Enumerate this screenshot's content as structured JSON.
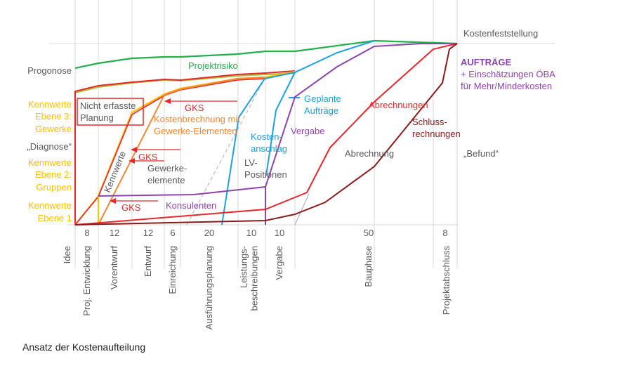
{
  "caption": "Ansatz der Kostenaufteilung",
  "colors": {
    "grid": "#d9d9d9",
    "grey_text": "#595959",
    "yellow": "#ffc000",
    "green": "#21b04b",
    "red": "#e8262b",
    "orange": "#f58634",
    "blue": "#1ba1e2",
    "purple": "#8e44ad",
    "darkred": "#8b1a1a",
    "dashed": "#bbbbbb"
  },
  "phases": [
    {
      "label": "Idee",
      "duration": ""
    },
    {
      "label": "Proj. Entwicklung",
      "duration": "8"
    },
    {
      "label": "Vorentwurf",
      "duration": "12"
    },
    {
      "label": "Entwurf",
      "duration": "12"
    },
    {
      "label": "Einreichung",
      "duration": "6"
    },
    {
      "label": "Ausführungsplanung",
      "duration": "20"
    },
    {
      "label": "Leistungs-\nbeschreibungen",
      "duration": "10"
    },
    {
      "label": "Vergabe",
      "duration": "10"
    },
    {
      "label": "Bauphase",
      "duration": "50"
    },
    {
      "label": "Projektabschluss",
      "duration": "8"
    }
  ],
  "left_labels": {
    "prognose": "Progonose",
    "kennwerte3": [
      "Kennwerte",
      "Ebene 3:",
      "Gewerke"
    ],
    "diagnose": "„Diagnose“",
    "kennwerte2": [
      "Kennwerte",
      "Ebene 2:",
      "Gruppen"
    ],
    "kennwerte1": [
      "Kennwerte",
      "Ebene 1"
    ]
  },
  "right_labels": {
    "kostenfeststellung": "Kostenfeststellung",
    "auftraege_title": "AUFTRÄGE",
    "auftraege_line1": "+ Einschätzungen ÖBA",
    "auftraege_line2": "für Mehr/Minderkosten",
    "befund": "„Befund“"
  },
  "annotations": {
    "projektrisiko": "Projektrisiko",
    "nicht_erfasste": [
      "Nicht erfasste",
      "Planung"
    ],
    "gks": "GKS",
    "kostenberechnung": [
      "Kostenbrechnung mit",
      "Gewerke-Elementen"
    ],
    "kennwerte_diag": "Kennwerte",
    "gewerkeelemente": [
      "Gewerke-",
      "elemente"
    ],
    "konsulenten": "Konsulenten",
    "kostenanschlag": [
      "Kosten-",
      "anschlag"
    ],
    "lv_positionen": [
      "LV-",
      "Positionen"
    ],
    "geplante_auftraege": [
      "Geplante",
      "Aufträge"
    ],
    "vergabe": "Vergabe",
    "abrechnungen": "Abrechnungen",
    "schlussrechnungen": [
      "Schluss-",
      "rechnungen"
    ],
    "abrechnung": "Abrechnung"
  },
  "curves": [
    {
      "name": "prognose-projektrisiko",
      "color_key": "green",
      "points": [
        [
          0,
          0.86
        ],
        [
          1,
          0.88
        ],
        [
          2,
          0.91
        ],
        [
          3,
          0.92
        ],
        [
          4,
          0.92
        ],
        [
          5,
          0.94
        ],
        [
          6,
          0.95
        ],
        [
          7,
          0.95
        ],
        [
          8,
          1.02
        ],
        [
          10,
          1.0
        ]
      ]
    },
    {
      "name": "kennwerte-upper",
      "color_key": "red",
      "points": [
        [
          0,
          0.74
        ],
        [
          1,
          0.77
        ],
        [
          2,
          0.79
        ],
        [
          3,
          0.8
        ],
        [
          4,
          0.8
        ],
        [
          5,
          0.82
        ],
        [
          6,
          0.83
        ],
        [
          7,
          0.84
        ]
      ]
    },
    {
      "name": "kennwerte",
      "color_key": "red",
      "points": [
        [
          0,
          0
        ],
        [
          1,
          0.16
        ],
        [
          2,
          0.61
        ],
        [
          3,
          0.71
        ],
        [
          4,
          0.75
        ],
        [
          5,
          0.78
        ],
        [
          6,
          0.81
        ],
        [
          7,
          0.84
        ]
      ]
    },
    {
      "name": "kostenberechnung",
      "color_key": "orange",
      "points": [
        [
          1,
          0
        ],
        [
          3,
          0.71
        ],
        [
          4,
          0.75
        ],
        [
          5,
          0.79
        ],
        [
          6,
          0.81
        ],
        [
          7,
          0.84
        ]
      ]
    },
    {
      "name": "kostenanschlag",
      "color_key": "blue",
      "points": [
        [
          5.3,
          0
        ],
        [
          5.98,
          0.59
        ],
        [
          6.95,
          0.81
        ],
        [
          7,
          0.84
        ],
        [
          8,
          1.0
        ]
      ]
    },
    {
      "name": "geplante-auftraege",
      "color_key": "blue",
      "points": [
        [
          6.95,
          0.27
        ],
        [
          7.4,
          0.63
        ],
        [
          8,
          0.84
        ],
        [
          8.55,
          0.95
        ],
        [
          9,
          1.0
        ]
      ]
    },
    {
      "name": "auftraege-vergabe",
      "color_key": "purple",
      "points": [
        [
          1,
          0.16
        ],
        [
          5,
          0.17
        ],
        [
          6.95,
          0.21
        ],
        [
          6.95,
          0
        ],
        [
          7,
          0.21
        ],
        [
          8,
          0.71
        ],
        [
          8.5,
          0.87
        ],
        [
          9,
          0.98
        ],
        [
          10,
          1.0
        ]
      ]
    },
    {
      "name": "abrechnungen",
      "color_key": "red",
      "points": [
        [
          0,
          0
        ],
        [
          6.95,
          0.08
        ],
        [
          7.45,
          0.18
        ],
        [
          7.8,
          0.43
        ],
        [
          9,
          0.68
        ],
        [
          9.7,
          0.97
        ],
        [
          10,
          1.0
        ]
      ]
    },
    {
      "name": "schlussrechnungen",
      "color_key": "darkred",
      "points": [
        [
          0,
          0
        ],
        [
          6.95,
          0.02
        ],
        [
          7,
          0.06
        ],
        [
          7.8,
          0.12
        ],
        [
          9,
          0.32
        ],
        [
          9.85,
          0.78
        ],
        [
          9.9,
          0.97
        ],
        [
          10,
          1.0
        ]
      ]
    }
  ]
}
